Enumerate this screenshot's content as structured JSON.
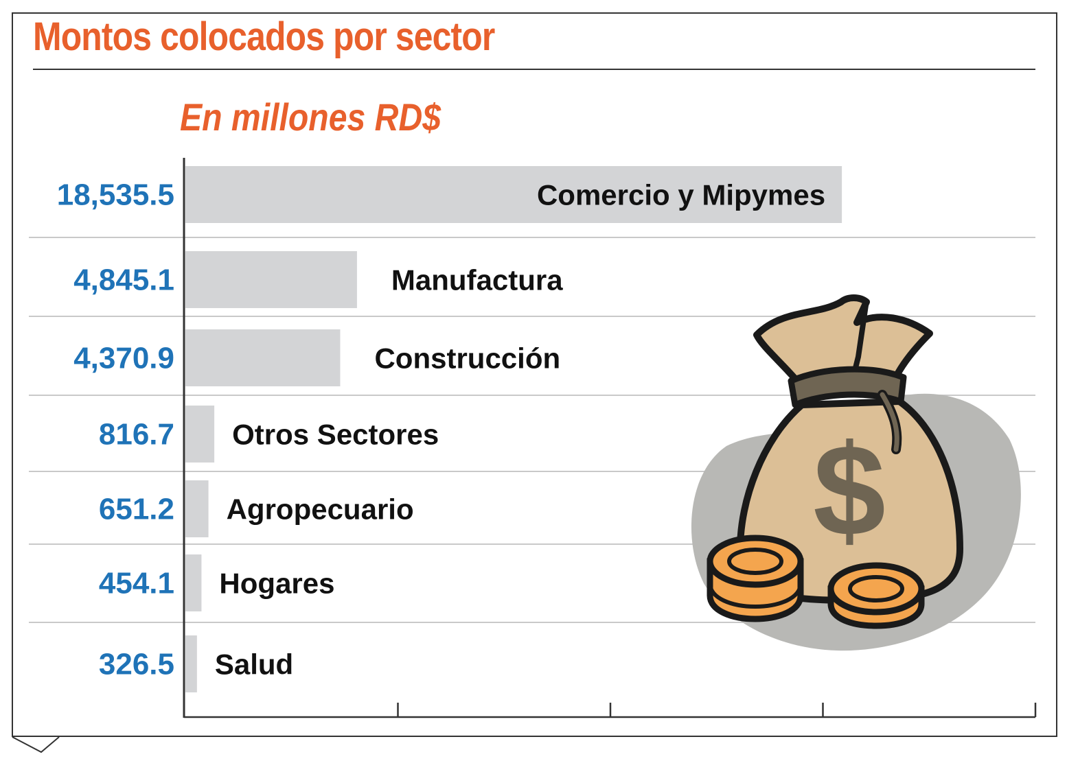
{
  "title": "Montos colocados por sector",
  "subtitle": "En millones RD$",
  "colors": {
    "accent": "#e8602c",
    "value_text": "#1f73b7",
    "bar": "#d3d4d6",
    "label_text": "#111111"
  },
  "illustration": {
    "name": "money-bag-icon",
    "symbol": "$"
  },
  "chart_data": {
    "type": "bar",
    "orientation": "horizontal",
    "categories": [
      "Comercio y Mipymes",
      "Manufactura",
      "Construcción",
      "Otros Sectores",
      "Agropecuario",
      "Hogares",
      "Salud"
    ],
    "values": [
      18535.5,
      4845.1,
      4370.9,
      816.7,
      651.2,
      454.1,
      326.5
    ],
    "value_labels": [
      "18,535.5",
      "4,845.1",
      "4,370.9",
      "816.7",
      "651.2",
      "454.1",
      "326.5"
    ],
    "title": "Montos colocados por sector",
    "subtitle": "En millones RD$",
    "xlabel": "",
    "ylabel": "",
    "xlim": [
      0,
      24000
    ],
    "x_ticks": [
      0,
      6000,
      12000,
      18000,
      24000
    ],
    "grid": "horizontal separators",
    "legend": "none"
  }
}
